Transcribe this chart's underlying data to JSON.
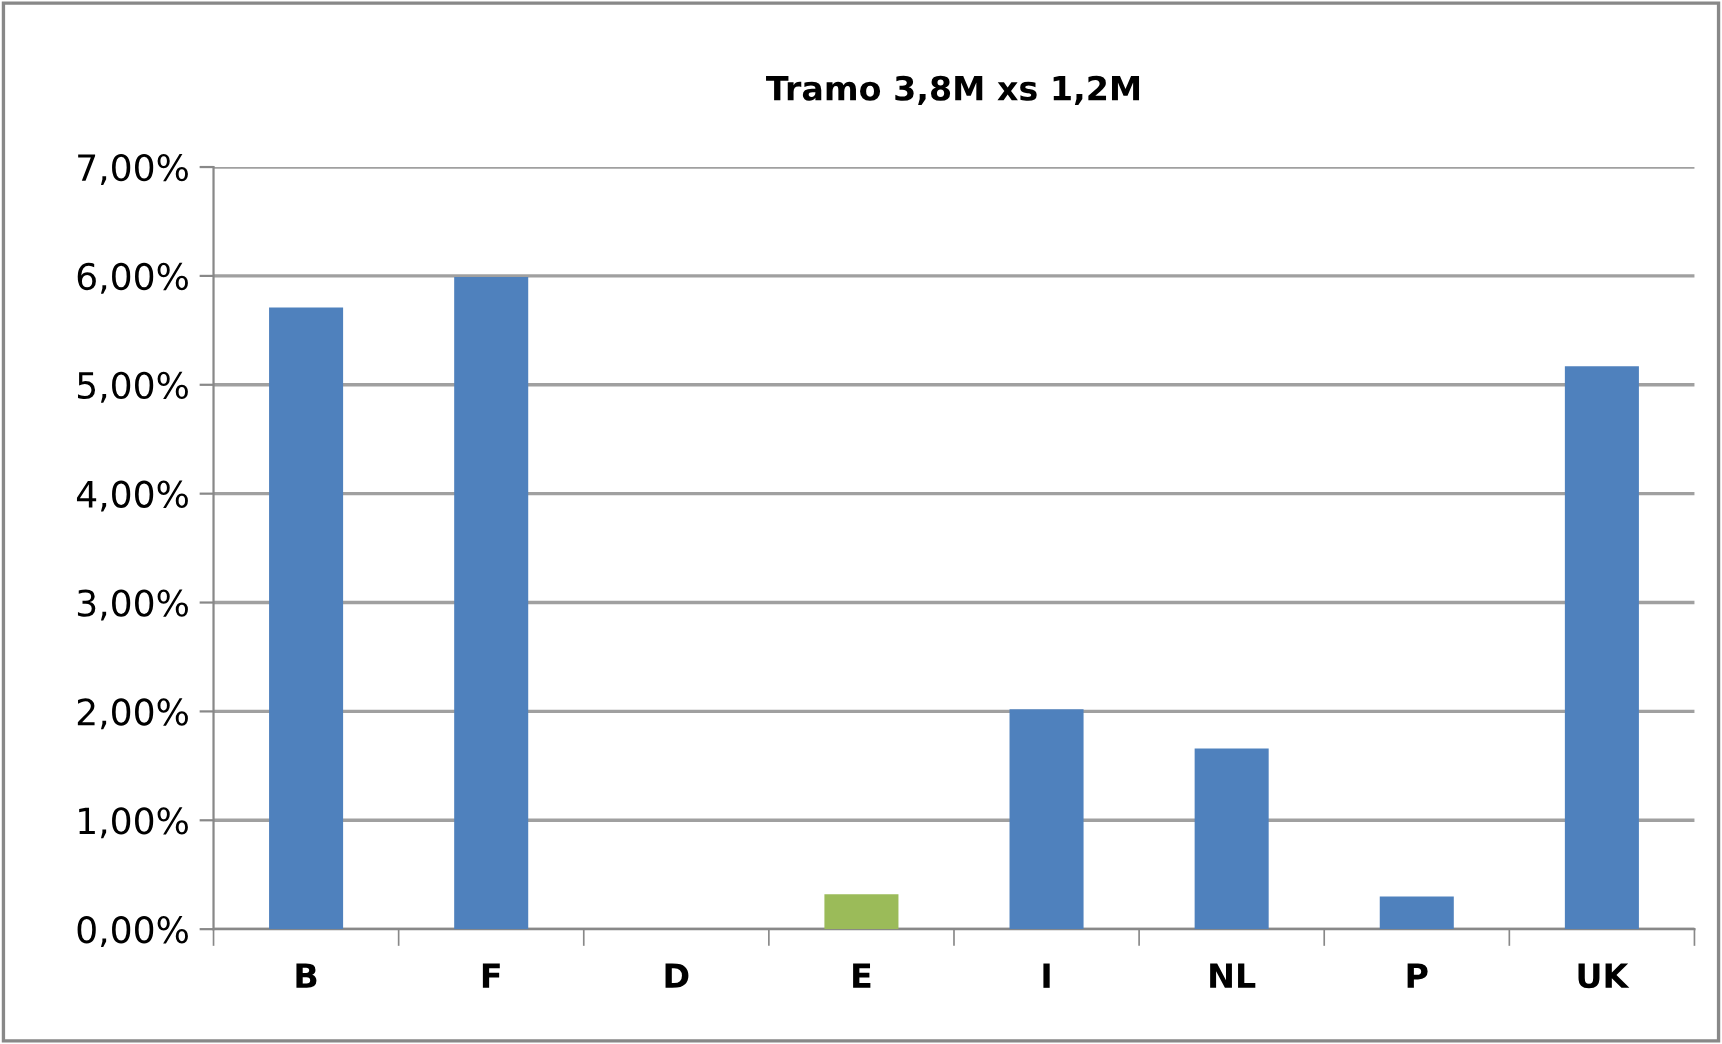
{
  "chart_data": {
    "type": "bar",
    "title": "Tramo 3,8M xs 1,2M",
    "categories": [
      "B",
      "F",
      "D",
      "E",
      "I",
      "NL",
      "P",
      "UK"
    ],
    "values": [
      5.71,
      5.99,
      0,
      0.32,
      2.02,
      1.66,
      0.3,
      5.17
    ],
    "colors": [
      "#4f81bd",
      "#4f81bd",
      "#4f81bd",
      "#9bbb59",
      "#4f81bd",
      "#4f81bd",
      "#4f81bd",
      "#4f81bd"
    ],
    "ylim": [
      0,
      7
    ],
    "yticks": [
      {
        "value": 0,
        "label": "0,00%"
      },
      {
        "value": 1,
        "label": "1,00%"
      },
      {
        "value": 2,
        "label": "2,00%"
      },
      {
        "value": 3,
        "label": "3,00%"
      },
      {
        "value": 4,
        "label": "4,00%"
      },
      {
        "value": 5,
        "label": "5,00%"
      },
      {
        "value": 6,
        "label": "6,00%"
      },
      {
        "value": 7,
        "label": "7,00%"
      }
    ],
    "grid": "y"
  }
}
